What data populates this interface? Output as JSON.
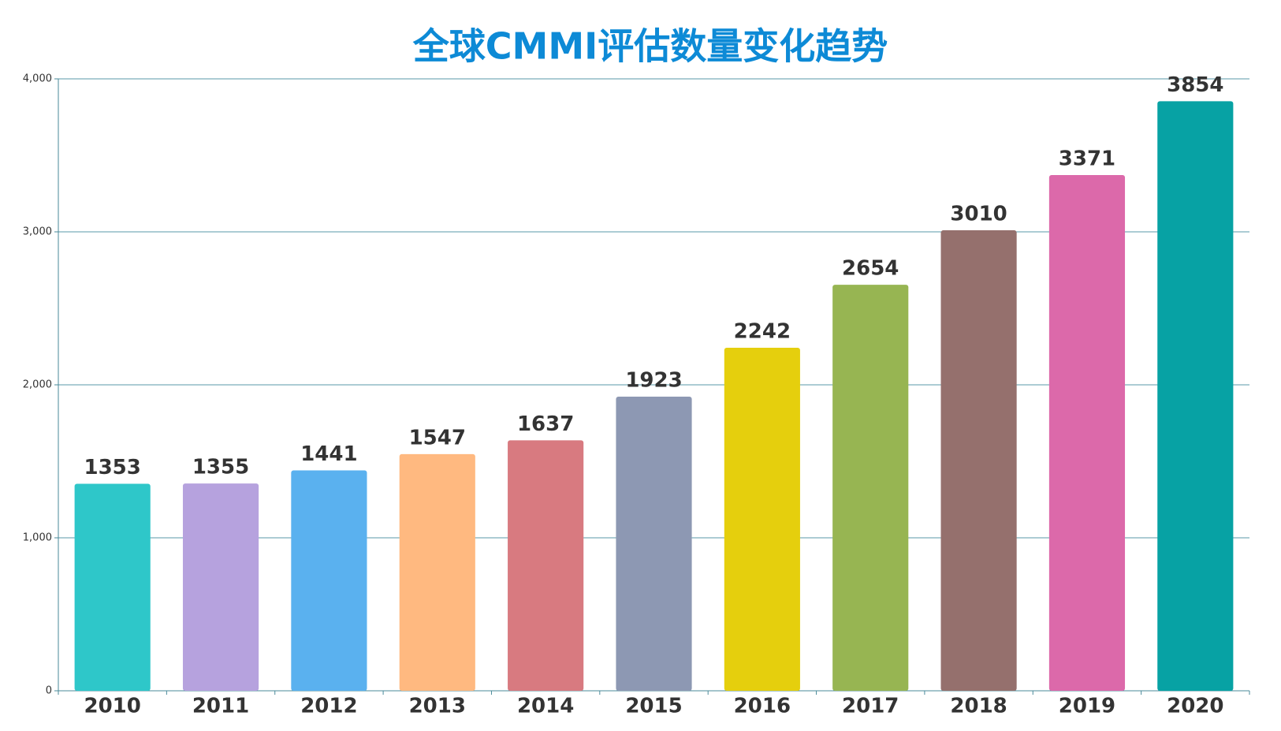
{
  "chart_data": {
    "type": "bar",
    "title": "全球CMMI评估数量变化趋势",
    "categories": [
      "2010",
      "2011",
      "2012",
      "2013",
      "2014",
      "2015",
      "2016",
      "2017",
      "2018",
      "2019",
      "2020"
    ],
    "values": [
      1353,
      1355,
      1441,
      1547,
      1637,
      1923,
      2242,
      2654,
      3010,
      3371,
      3854
    ],
    "colors": [
      "#2ec7c9",
      "#b6a2de",
      "#5ab1ef",
      "#ffb980",
      "#d87a80",
      "#8d98b3",
      "#e5cf0d",
      "#97b552",
      "#95706d",
      "#dc69aa",
      "#07a2a4"
    ],
    "ylim": [
      0,
      4000
    ],
    "yticks": [
      0,
      {
        "value": 1000,
        "label": "1,000"
      },
      {
        "value": 2000,
        "label": "2,000"
      },
      {
        "value": 3000,
        "label": "3,000"
      },
      {
        "value": 4000,
        "label": "4,000"
      }
    ],
    "grid": true
  }
}
